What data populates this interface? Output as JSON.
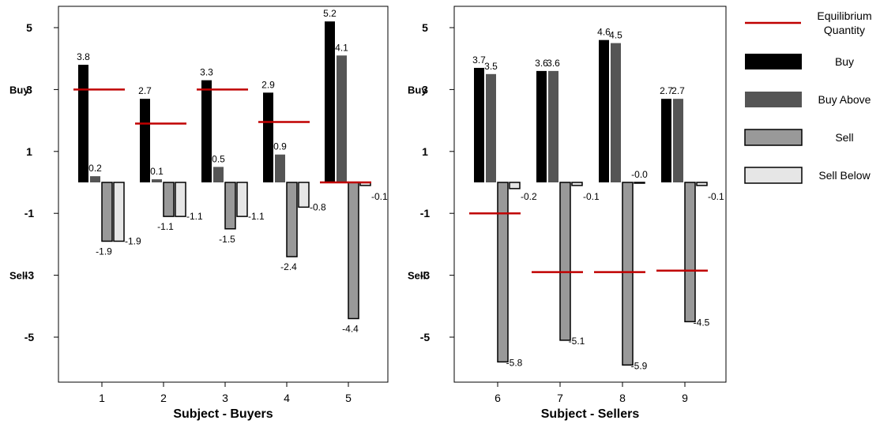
{
  "colors": {
    "buy": "#000000",
    "buy_above": "#555555",
    "sell": "#999999",
    "sell_below": "#e6e6e6",
    "equilibrium": "#c00000"
  },
  "legend": {
    "items": [
      {
        "key": "equilibrium",
        "label": "Equilibrium Quantity",
        "lines": [
          "Equilibrium",
          "Quantity"
        ],
        "symbol": "line"
      },
      {
        "key": "buy",
        "label": "Buy",
        "lines": [
          "Buy"
        ],
        "symbol": "box"
      },
      {
        "key": "buy_above",
        "label": "Buy Above",
        "lines": [
          "Buy Above"
        ],
        "symbol": "box"
      },
      {
        "key": "sell",
        "label": "Sell",
        "lines": [
          "Sell"
        ],
        "symbol": "box"
      },
      {
        "key": "sell_below",
        "label": "Sell Below",
        "lines": [
          "Sell Below"
        ],
        "symbol": "box"
      }
    ]
  },
  "chart_data": [
    {
      "type": "bar",
      "xlabel": "Subject - Buyers",
      "ylabel": "",
      "ylim": [
        -6.4,
        5.8
      ],
      "yticks": [
        5,
        3,
        1,
        -1,
        -3,
        -5
      ],
      "side_labels": {
        "top": "Buy",
        "bottom": "Sell"
      },
      "categories": [
        "1",
        "2",
        "3",
        "4",
        "5"
      ],
      "series": [
        {
          "name": "Buy",
          "key": "buy",
          "values": [
            3.8,
            2.7,
            3.3,
            2.9,
            5.2
          ]
        },
        {
          "name": "Buy Above",
          "key": "buy_above",
          "values": [
            0.2,
            0.1,
            0.5,
            0.9,
            4.1
          ]
        },
        {
          "name": "Sell",
          "key": "sell",
          "values": [
            -1.9,
            -1.1,
            -1.5,
            -2.4,
            -4.4
          ]
        },
        {
          "name": "Sell Below",
          "key": "sell_below",
          "values": [
            -1.9,
            -1.1,
            -1.1,
            -0.8,
            -0.1
          ]
        }
      ],
      "equilibrium": [
        3.0,
        1.9,
        3.0,
        1.95,
        0.0
      ]
    },
    {
      "type": "bar",
      "xlabel": "Subject - Sellers",
      "ylabel": "",
      "ylim": [
        -6.4,
        5.8
      ],
      "yticks": [
        5,
        3,
        1,
        -1,
        -3,
        -5
      ],
      "side_labels": {
        "top": "Buy",
        "bottom": "Sell"
      },
      "categories": [
        "6",
        "7",
        "8",
        "9"
      ],
      "series": [
        {
          "name": "Buy",
          "key": "buy",
          "values": [
            3.7,
            3.6,
            4.6,
            2.7
          ]
        },
        {
          "name": "Buy Above",
          "key": "buy_above",
          "values": [
            3.5,
            3.6,
            4.5,
            2.7
          ]
        },
        {
          "name": "Sell",
          "key": "sell",
          "values": [
            -5.8,
            -5.1,
            -5.9,
            -4.5
          ]
        },
        {
          "name": "Sell Below",
          "key": "sell_below",
          "values": [
            -0.2,
            -0.1,
            -0.0,
            -0.1
          ]
        }
      ],
      "value_labels": {
        "buy": [
          "3.7",
          "3.6",
          "4.6",
          "2.7"
        ],
        "buy_above": [
          "3.5",
          "3.6",
          "4.5",
          "2.7"
        ],
        "sell": [
          "-5.8",
          "-5.1",
          "-5.9",
          "-4.5"
        ],
        "sell_below": [
          "-0.2",
          "-0.1",
          "-0.0",
          "-0.1"
        ]
      },
      "equilibrium": [
        -1.0,
        -2.9,
        -2.9,
        -2.85
      ]
    }
  ]
}
